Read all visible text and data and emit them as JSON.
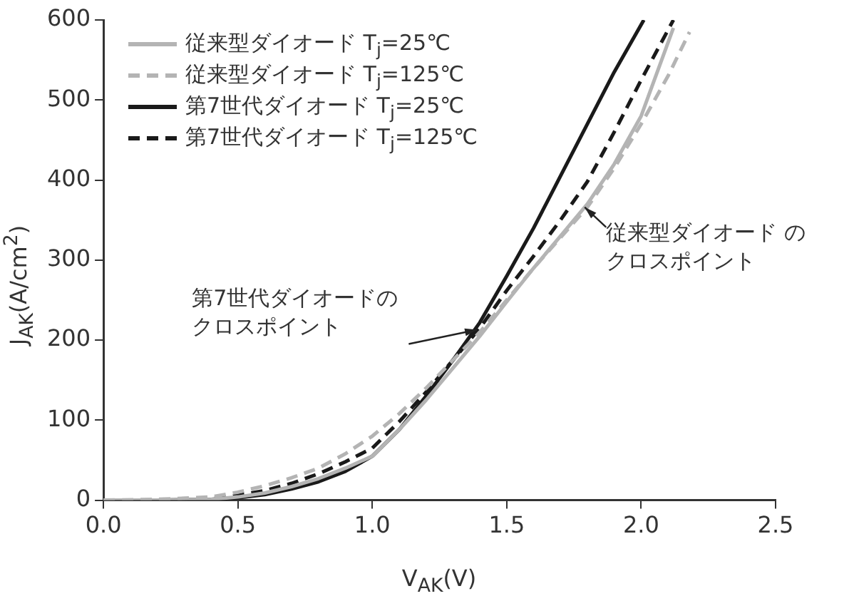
{
  "chart_data": {
    "type": "line",
    "xlabel": "V$_{AK}$(V)",
    "ylabel": "J$_{AK}$(A/cm$^{2}$)",
    "xlim": [
      0,
      2.5
    ],
    "xticks": [
      {
        "value": 0,
        "label": "0.0"
      },
      0.5,
      {
        "value": 1,
        "label": "1.0"
      },
      1.5,
      {
        "value": 2,
        "label": "2.0"
      },
      2.5
    ],
    "ylim": [
      0,
      600
    ],
    "yticks": [
      0,
      100,
      200,
      300,
      400,
      500,
      600
    ],
    "grid": false,
    "legend": "top left",
    "marker": "none",
    "series": [
      {
        "name": "従来型ダイオード T$_{j}$=25℃",
        "color": "#b4b4b4",
        "line_style": "solid",
        "x": [
          0,
          0.2,
          0.4,
          0.5,
          0.6,
          0.7,
          0.8,
          0.9,
          1.0,
          1.1,
          1.2,
          1.3,
          1.4,
          1.5,
          1.6,
          1.7,
          1.8,
          1.9,
          2.0,
          2.12
        ],
        "values": [
          0,
          0,
          1,
          4,
          9,
          17,
          27,
          40,
          55,
          88,
          125,
          165,
          205,
          248,
          290,
          330,
          370,
          420,
          480,
          590
        ]
      },
      {
        "name": "従来型ダイオード T$_{j}$=125℃",
        "color": "#b4b4b4",
        "line_style": "dashed",
        "x": [
          0,
          0.2,
          0.4,
          0.5,
          0.6,
          0.7,
          0.8,
          0.9,
          1.0,
          1.1,
          1.2,
          1.3,
          1.4,
          1.5,
          1.6,
          1.7,
          1.8,
          1.9,
          2.0,
          2.1,
          2.18
        ],
        "values": [
          0,
          1,
          4,
          10,
          18,
          28,
          40,
          58,
          80,
          108,
          140,
          175,
          210,
          250,
          290,
          328,
          366,
          415,
          470,
          530,
          585
        ]
      },
      {
        "name": "第7世代ダイオード T$_{j}$=25℃",
        "color": "#1a1a1a",
        "line_style": "solid",
        "x": [
          0,
          0.2,
          0.4,
          0.5,
          0.6,
          0.7,
          0.8,
          0.9,
          1.0,
          1.1,
          1.2,
          1.3,
          1.4,
          1.5,
          1.6,
          1.7,
          1.8,
          1.9,
          2.01
        ],
        "values": [
          0,
          0,
          1,
          3,
          7,
          14,
          23,
          36,
          55,
          88,
          130,
          175,
          222,
          280,
          340,
          405,
          470,
          535,
          600
        ]
      },
      {
        "name": "第7世代ダイオード T$_{j}$=125℃",
        "color": "#1a1a1a",
        "line_style": "dashed",
        "x": [
          0,
          0.2,
          0.4,
          0.5,
          0.6,
          0.7,
          0.8,
          0.9,
          1.0,
          1.1,
          1.2,
          1.3,
          1.4,
          1.5,
          1.6,
          1.7,
          1.8,
          1.9,
          2.0,
          2.12
        ],
        "values": [
          0,
          0,
          2,
          6,
          12,
          21,
          33,
          48,
          65,
          98,
          135,
          175,
          215,
          262,
          305,
          350,
          398,
          460,
          525,
          600
        ]
      }
    ],
    "annotations": [
      {
        "text": "第7世代ダイオードのクロスポイント",
        "x": 1.39,
        "y": 213
      },
      {
        "text": "従来型ダイオード のクロスポイント",
        "x": 1.79,
        "y": 366
      }
    ]
  }
}
